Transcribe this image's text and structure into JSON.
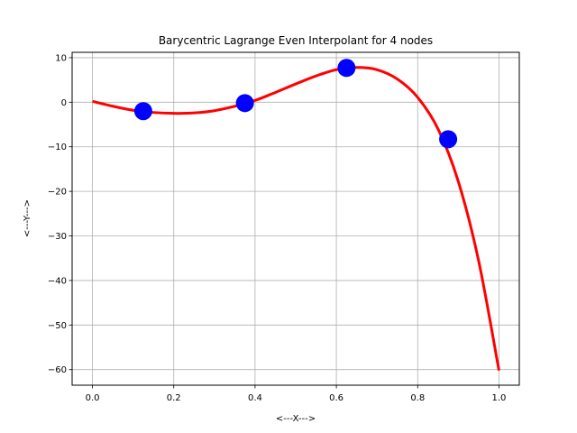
{
  "chart_data": {
    "type": "line",
    "title": "Barycentric Lagrange Even Interpolant for 4 nodes",
    "xlabel": "<---X--->",
    "ylabel": "<---Y--->",
    "xlim": [
      -0.05,
      1.05
    ],
    "ylim": [
      -63.5,
      11.2
    ],
    "xticks": [
      0.0,
      0.2,
      0.4,
      0.6,
      0.8,
      1.0
    ],
    "xtick_labels": [
      "0.0",
      "0.2",
      "0.4",
      "0.6",
      "0.8",
      "1.0"
    ],
    "yticks": [
      10,
      0,
      -10,
      -20,
      -30,
      -40,
      -50,
      -60
    ],
    "ytick_labels": [
      "10",
      "0",
      "−10",
      "−20",
      "−30",
      "−40",
      "−50",
      "−60"
    ],
    "grid": true,
    "series": [
      {
        "kind": "scatter",
        "color": "#0000ff",
        "x": [
          0.125,
          0.375,
          0.625,
          0.875
        ],
        "y": [
          -2.0,
          -0.2,
          7.7,
          -8.3
        ]
      },
      {
        "kind": "line",
        "color": "#ff0000",
        "x": [
          0.0,
          0.05,
          0.1,
          0.15,
          0.2,
          0.25,
          0.3,
          0.35,
          0.4,
          0.45,
          0.5,
          0.55,
          0.6,
          0.65,
          0.7,
          0.75,
          0.8,
          0.85,
          0.9,
          0.95,
          1.0
        ],
        "y": [
          0.2,
          -0.9,
          -1.8,
          -2.3,
          -2.5,
          -2.4,
          -1.9,
          -0.9,
          0.4,
          2.2,
          4.1,
          5.9,
          7.3,
          7.8,
          7.3,
          5.2,
          1.1,
          -6.0,
          -17.8,
          -35.6,
          -60.2
        ]
      }
    ]
  }
}
